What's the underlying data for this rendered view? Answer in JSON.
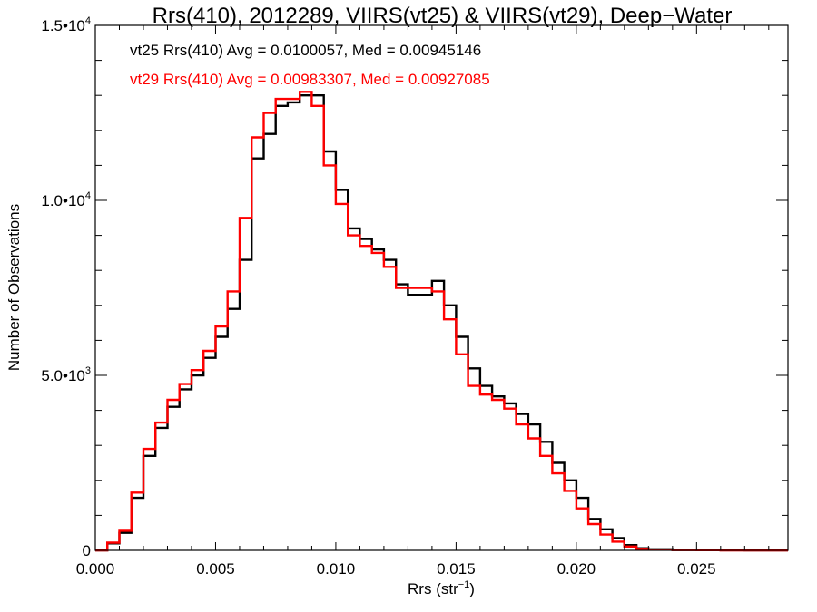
{
  "chart_data": {
    "type": "line",
    "title": "Rrs(410), 2012289, VIIRS(vt25) & VIIRS(vt29), Deep−Water",
    "xlabel_main": "Rrs (str",
    "xlabel_sup": "−1",
    "xlabel_end": ")",
    "ylabel": "Number of Observations",
    "xlim": [
      0,
      0.0288
    ],
    "ylim": [
      0,
      15000
    ],
    "x_ticks": [
      {
        "value": 0.0,
        "label": "0.000"
      },
      {
        "value": 0.005,
        "label": "0.005"
      },
      {
        "value": 0.01,
        "label": "0.010"
      },
      {
        "value": 0.015,
        "label": "0.015"
      },
      {
        "value": 0.02,
        "label": "0.020"
      },
      {
        "value": 0.025,
        "label": "0.025"
      }
    ],
    "y_ticks": [
      {
        "value": 0,
        "base": "0",
        "exp": ""
      },
      {
        "value": 5000,
        "base": "5.0•10",
        "exp": "3"
      },
      {
        "value": 10000,
        "base": "1.0•10",
        "exp": "4"
      },
      {
        "value": 15000,
        "base": "1.5•10",
        "exp": "4"
      }
    ],
    "grid": false,
    "annotations": [
      {
        "text": "vt25 Rrs(410) Avg = 0.0100057, Med = 0.00945146",
        "color": "#000000"
      },
      {
        "text": "vt29 Rrs(410) Avg = 0.00983307, Med = 0.00927085",
        "color": "#ff0000"
      }
    ],
    "series": [
      {
        "color": "#000000",
        "x": [
          0.0,
          0.0005,
          0.001,
          0.0015,
          0.002,
          0.0025,
          0.003,
          0.0035,
          0.004,
          0.0045,
          0.005,
          0.0055,
          0.006,
          0.0065,
          0.007,
          0.0075,
          0.008,
          0.0085,
          0.009,
          0.0095,
          0.01,
          0.0105,
          0.011,
          0.0115,
          0.012,
          0.0125,
          0.013,
          0.0135,
          0.014,
          0.0145,
          0.015,
          0.0155,
          0.016,
          0.0165,
          0.017,
          0.0175,
          0.018,
          0.0185,
          0.019,
          0.0195,
          0.02,
          0.0205,
          0.021,
          0.0215,
          0.022,
          0.0225,
          0.023,
          0.024,
          0.025,
          0.026,
          0.027,
          0.0288
        ],
        "y": [
          0,
          200,
          500,
          1500,
          2700,
          3500,
          4100,
          4600,
          5000,
          5500,
          6100,
          6900,
          8300,
          11200,
          11900,
          12700,
          12800,
          13000,
          13000,
          11400,
          10300,
          9200,
          8900,
          8600,
          8300,
          7600,
          7300,
          7300,
          7700,
          7000,
          6100,
          5200,
          4700,
          4400,
          4200,
          3900,
          3600,
          3100,
          2500,
          2000,
          1500,
          900,
          600,
          350,
          150,
          60,
          30,
          10,
          5,
          2,
          0,
          0
        ]
      },
      {
        "color": "#ff0000",
        "x": [
          0.0,
          0.0005,
          0.001,
          0.0015,
          0.002,
          0.0025,
          0.003,
          0.0035,
          0.004,
          0.0045,
          0.005,
          0.0055,
          0.006,
          0.0065,
          0.007,
          0.0075,
          0.008,
          0.0085,
          0.009,
          0.0095,
          0.01,
          0.0105,
          0.011,
          0.0115,
          0.012,
          0.0125,
          0.013,
          0.0135,
          0.014,
          0.0145,
          0.015,
          0.0155,
          0.016,
          0.0165,
          0.017,
          0.0175,
          0.018,
          0.0185,
          0.019,
          0.0195,
          0.02,
          0.0205,
          0.021,
          0.0215,
          0.022,
          0.0225,
          0.023,
          0.024,
          0.025,
          0.026,
          0.027,
          0.0288
        ],
        "y": [
          0,
          220,
          560,
          1650,
          2900,
          3650,
          4300,
          4750,
          5150,
          5700,
          6400,
          7400,
          9500,
          11800,
          12500,
          12900,
          12900,
          13100,
          12700,
          11000,
          9900,
          9000,
          8700,
          8500,
          8100,
          7500,
          7500,
          7500,
          7400,
          6600,
          5600,
          4700,
          4450,
          4300,
          4050,
          3600,
          3200,
          2700,
          2200,
          1700,
          1200,
          750,
          450,
          250,
          110,
          45,
          20,
          8,
          4,
          1,
          0,
          0
        ]
      }
    ]
  }
}
